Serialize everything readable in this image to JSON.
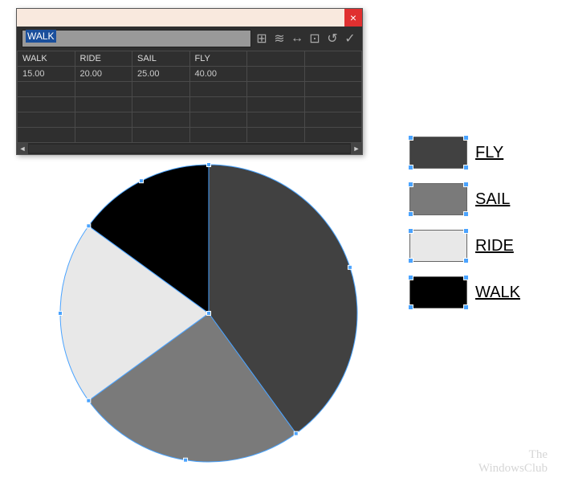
{
  "panel": {
    "close_glyph": "×",
    "edit_value": "WALK",
    "tool_icons": [
      "⊞",
      "≋",
      "↔",
      "⊡",
      "↺",
      "✓"
    ],
    "columns": [
      "WALK",
      "RIDE",
      "SAIL",
      "FLY",
      "",
      ""
    ],
    "rows": [
      [
        "15.00",
        "20.00",
        "25.00",
        "40.00",
        "",
        ""
      ],
      [
        "",
        "",
        "",
        "",
        "",
        ""
      ],
      [
        "",
        "",
        "",
        "",
        "",
        ""
      ],
      [
        "",
        "",
        "",
        "",
        "",
        ""
      ],
      [
        "",
        "",
        "",
        "",
        "",
        ""
      ]
    ],
    "scroll_left": "◄",
    "scroll_right": "►"
  },
  "pie": {
    "type": "pie",
    "slices": [
      {
        "label": "FLY",
        "value": 40,
        "color": "#414141"
      },
      {
        "label": "SAIL",
        "value": 25,
        "color": "#7a7a7a"
      },
      {
        "label": "RIDE",
        "value": 20,
        "color": "#e8e8e8"
      },
      {
        "label": "WALK",
        "value": 15,
        "color": "#000000"
      }
    ],
    "start_angle_deg": -90,
    "radius": 185,
    "selection_stroke": "#4aa3ff",
    "selection_anchor_size": 5,
    "background": "#ffffff"
  },
  "legend": {
    "items": [
      {
        "label": "FLY",
        "color": "#414141"
      },
      {
        "label": "SAIL",
        "color": "#7a7a7a"
      },
      {
        "label": "RIDE",
        "color": "#e8e8e8"
      },
      {
        "label": "WALK",
        "color": "#000000"
      }
    ]
  },
  "watermark": {
    "line1": "The",
    "line2": "WindowsClub"
  }
}
